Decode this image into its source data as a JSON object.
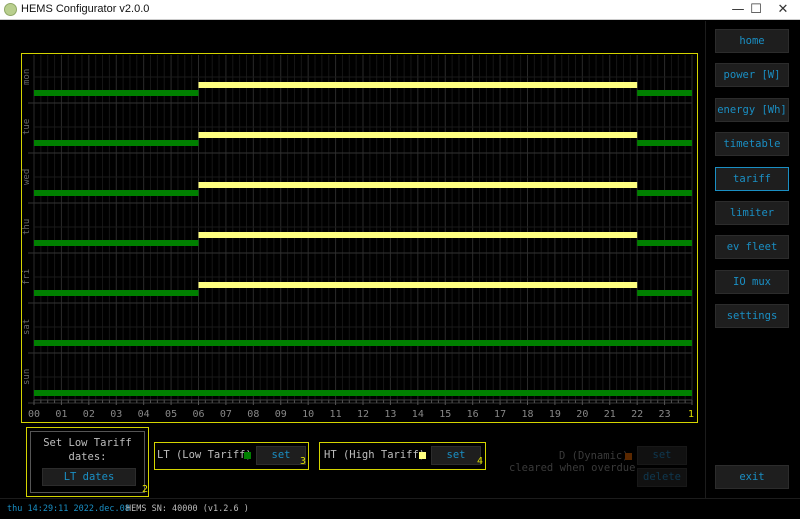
{
  "window": {
    "title": "HEMS Configurator v2.0.0",
    "minimize": "—",
    "maximize": "☐",
    "close": "✕"
  },
  "nav": [
    {
      "label": "home"
    },
    {
      "label": "power [W]"
    },
    {
      "label": "energy [Wh]"
    },
    {
      "label": "timetable"
    },
    {
      "label": "tariff",
      "active": true
    },
    {
      "label": "limiter"
    },
    {
      "label": "ev fleet"
    },
    {
      "label": "IO mux"
    },
    {
      "label": "settings"
    }
  ],
  "exit_label": "exit",
  "chart_data": {
    "type": "timeline",
    "days": [
      "mon",
      "tue",
      "wed",
      "thu",
      "fri",
      "sat",
      "sun"
    ],
    "hour_ticks": [
      "00",
      "01",
      "02",
      "03",
      "04",
      "05",
      "06",
      "07",
      "08",
      "09",
      "10",
      "11",
      "12",
      "13",
      "14",
      "15",
      "16",
      "17",
      "18",
      "19",
      "20",
      "21",
      "22",
      "23"
    ],
    "xlim": [
      0,
      24
    ],
    "colors": {
      "LT": "#008000",
      "HT": "#ffff80",
      "D": "#8b3a00"
    },
    "schedule": {
      "mon": [
        {
          "tariff": "LT",
          "from": 0,
          "to": 6
        },
        {
          "tariff": "HT",
          "from": 6,
          "to": 22
        },
        {
          "tariff": "LT",
          "from": 22,
          "to": 24
        }
      ],
      "tue": [
        {
          "tariff": "LT",
          "from": 0,
          "to": 6
        },
        {
          "tariff": "HT",
          "from": 6,
          "to": 22
        },
        {
          "tariff": "LT",
          "from": 22,
          "to": 24
        }
      ],
      "wed": [
        {
          "tariff": "LT",
          "from": 0,
          "to": 6
        },
        {
          "tariff": "HT",
          "from": 6,
          "to": 22
        },
        {
          "tariff": "LT",
          "from": 22,
          "to": 24
        }
      ],
      "thu": [
        {
          "tariff": "LT",
          "from": 0,
          "to": 6
        },
        {
          "tariff": "HT",
          "from": 6,
          "to": 22
        },
        {
          "tariff": "LT",
          "from": 22,
          "to": 24
        }
      ],
      "fri": [
        {
          "tariff": "LT",
          "from": 0,
          "to": 6
        },
        {
          "tariff": "HT",
          "from": 6,
          "to": 22
        },
        {
          "tariff": "LT",
          "from": 22,
          "to": 24
        }
      ],
      "sat": [
        {
          "tariff": "LT",
          "from": 0,
          "to": 24
        }
      ],
      "sun": [
        {
          "tariff": "LT",
          "from": 0,
          "to": 24
        }
      ]
    },
    "grid": true
  },
  "markers": {
    "chart": "1",
    "lt_dates": "2",
    "lt": "3",
    "ht": "4"
  },
  "lt_dates": {
    "text1": "Set Low Tariff",
    "text2": "dates:",
    "button": "LT dates"
  },
  "lt": {
    "label": "LT (Low Tariff)",
    "button": "set"
  },
  "ht": {
    "label": "HT (High Tariff)",
    "button": "set"
  },
  "dyn": {
    "label": "D (Dynamic)",
    "note": "cleared when overdue",
    "set": "set",
    "delete": "delete"
  },
  "status": {
    "datetime": "thu 14:29:11 2022.dec.08",
    "sn": "HEMS SN: 40000 (v1.2.6 )"
  }
}
